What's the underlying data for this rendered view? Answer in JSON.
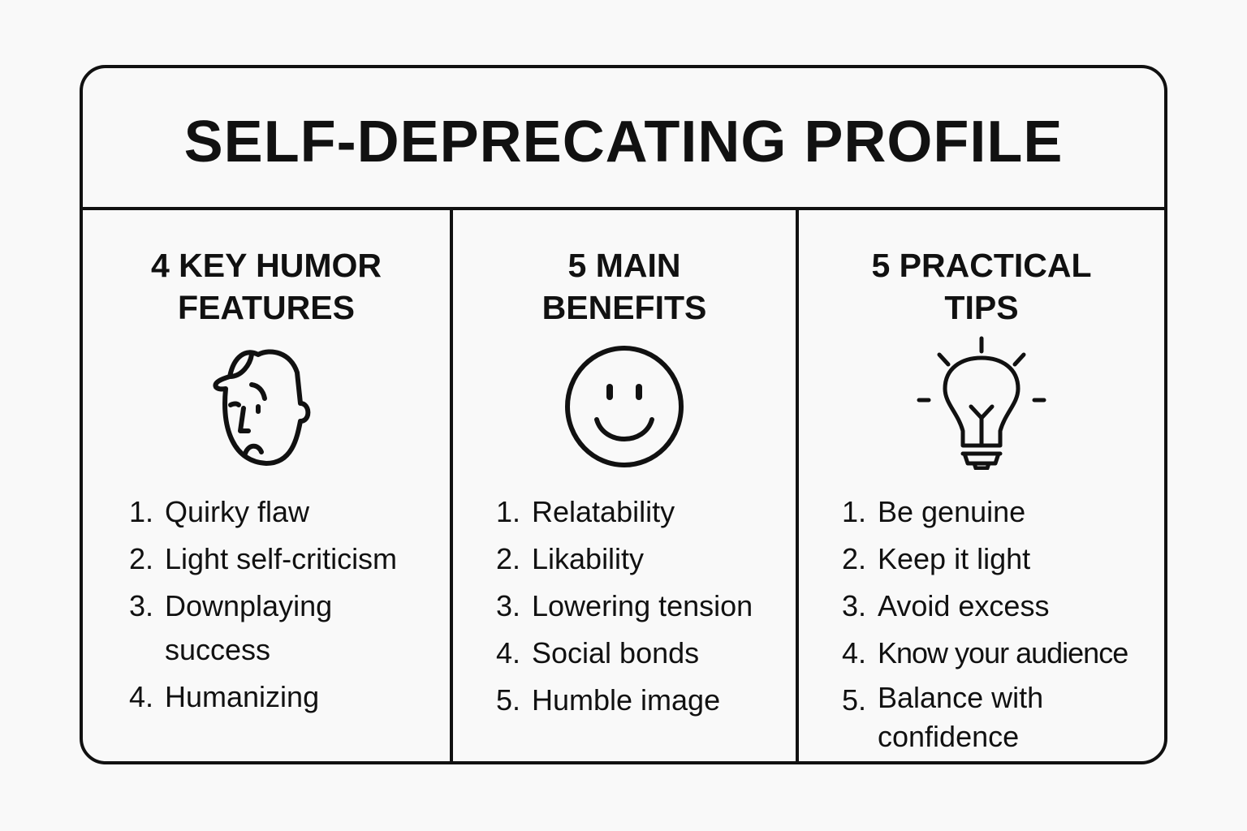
{
  "title": "SELF-DEPRECATING PROFILE",
  "columns": [
    {
      "heading": "4 KEY HUMOR\nFEATURES",
      "icon": "sad-face-person-icon",
      "items": [
        {
          "num": "1.",
          "text": "Quirky flaw"
        },
        {
          "num": "2.",
          "text": "Light self-criticism"
        },
        {
          "num": "3.",
          "text": "Downplaying\nsuccess"
        },
        {
          "num": "4.",
          "text": "Humanizing"
        }
      ]
    },
    {
      "heading": "5 MAIN\nBENEFITS",
      "icon": "smiley-face-icon",
      "items": [
        {
          "num": "1.",
          "text": "Relatability"
        },
        {
          "num": "2.",
          "text": "Likability"
        },
        {
          "num": "3.",
          "text": "Lowering tension"
        },
        {
          "num": "4.",
          "text": "Social bonds"
        },
        {
          "num": "5.",
          "text": "Humble image"
        }
      ]
    },
    {
      "heading": "5 PRACTICAL\nTIPS",
      "icon": "lightbulb-icon",
      "items": [
        {
          "num": "1.",
          "text": "Be genuine"
        },
        {
          "num": "2.",
          "text": "Keep it light"
        },
        {
          "num": "3.",
          "text": "Avoid excess"
        },
        {
          "num": "4.",
          "text": "Know your audience"
        },
        {
          "num": "5.",
          "text": "Balance with\nconfidence"
        }
      ]
    }
  ]
}
